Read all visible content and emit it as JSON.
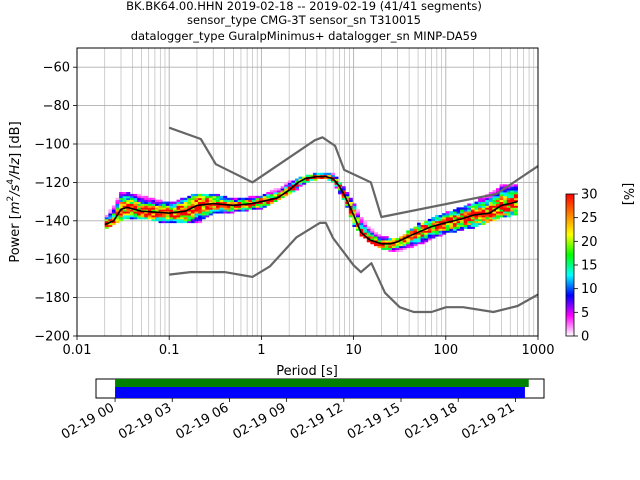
{
  "figure": {
    "title_lines": [
      "BK.BK64.00.HHN   2019-02-18 -- 2019-02-19  (41/41 segments)",
      "sensor_type CMG-3T sensor_sn T310015",
      "datalogger_type GuralpMinimus+ datalogger_sn MINP-DA59"
    ]
  },
  "chart_data": [
    {
      "type": "heatmap",
      "title": "BK.BK64.00.HHN   2019-02-18 -- 2019-02-19  (41/41 segments)",
      "xlabel": "Period [s]",
      "ylabel_parts": [
        "Power [",
        "m",
        "2",
        "/",
        "s",
        "4",
        "/",
        "Hz",
        "] [dB]"
      ],
      "xscale": "log",
      "xlim": [
        0.01,
        1000
      ],
      "ylim": [
        -200,
        -50
      ],
      "xtick_values": [
        0.01,
        0.1,
        1,
        10,
        100,
        1000
      ],
      "xtick_labels": [
        "0.01",
        "0.1",
        "1",
        "10",
        "100",
        "1000"
      ],
      "ytick_values": [
        -200,
        -180,
        -160,
        -140,
        -120,
        -100,
        -80,
        -60
      ],
      "ytick_labels": [
        "−200",
        "−180",
        "−160",
        "−140",
        "−120",
        "−100",
        "−80",
        "−60"
      ],
      "grid": true,
      "colorbar": {
        "label": "[%]",
        "range": [
          0,
          30
        ],
        "tick_values": [
          0,
          5,
          10,
          15,
          20,
          25,
          30
        ],
        "tick_labels": [
          "0",
          "5",
          "10",
          "15",
          "20",
          "25",
          "30"
        ],
        "colormap": [
          "#ffffff",
          "#ff00ff",
          "#0000ff",
          "#00ffff",
          "#00ff00",
          "#ffff00",
          "#ff8000",
          "#ff0000"
        ]
      },
      "series": [
        {
          "role": "noise-model-high",
          "color": "#666666",
          "x": [
            0.1,
            0.22,
            0.32,
            0.8,
            3.8,
            4.6,
            6.3,
            7.9,
            15.4,
            20,
            354,
            1000
          ],
          "y": [
            -91.5,
            -97.4,
            -110.5,
            -120,
            -98,
            -96.5,
            -101,
            -113.5,
            -120,
            -138,
            -126,
            -111.5
          ]
        },
        {
          "role": "noise-model-low",
          "color": "#666666",
          "x": [
            0.1,
            0.17,
            0.4,
            0.8,
            1.24,
            2.4,
            4.3,
            5,
            6,
            10,
            12,
            15.6,
            21.9,
            31.6,
            45,
            70,
            101,
            154,
            328,
            600,
            1000
          ],
          "y": [
            -168,
            -166.7,
            -166.7,
            -169.2,
            -163.7,
            -148.6,
            -141.1,
            -141.1,
            -149,
            -163.2,
            -166.7,
            -162.1,
            -177.5,
            -185,
            -187.5,
            -187.5,
            -185,
            -185,
            -187.5,
            -184.4,
            -178.4
          ]
        },
        {
          "role": "mode",
          "color": "#000000",
          "x": [
            0.02,
            0.025,
            0.03,
            0.035,
            0.05,
            0.1,
            0.15,
            0.2,
            0.3,
            0.5,
            0.8,
            1,
            1.5,
            2,
            2.5,
            3,
            4,
            5,
            6,
            7,
            8,
            10,
            12,
            15,
            20,
            25,
            30,
            40,
            50,
            70,
            100,
            150,
            200,
            300,
            400,
            500,
            600
          ],
          "y": [
            -142,
            -140,
            -134,
            -133,
            -135,
            -136,
            -135,
            -132,
            -131,
            -132,
            -131,
            -130,
            -128,
            -124,
            -120,
            -118,
            -117,
            -117,
            -118,
            -122,
            -127,
            -137,
            -146,
            -150,
            -152,
            -152,
            -151,
            -148,
            -146,
            -143,
            -141,
            -139,
            -137,
            -136,
            -132,
            -131,
            -130
          ]
        },
        {
          "role": "psd-envelope-upper",
          "x": [
            0.02,
            0.03,
            0.05,
            0.1,
            0.2,
            0.3,
            0.5,
            1,
            2,
            3,
            4,
            5,
            6,
            8,
            10,
            15,
            20,
            30,
            50,
            100,
            200,
            400,
            600
          ],
          "y": [
            -139,
            -125,
            -127,
            -131,
            -126,
            -126,
            -129,
            -127,
            -120,
            -117,
            -115,
            -115,
            -116,
            -123,
            -131,
            -143,
            -148,
            -150,
            -142,
            -136,
            -131,
            -122,
            -121
          ]
        },
        {
          "role": "psd-envelope-lower",
          "x": [
            0.02,
            0.03,
            0.05,
            0.1,
            0.2,
            0.3,
            0.5,
            1,
            2,
            3,
            4,
            5,
            6,
            8,
            10,
            15,
            20,
            30,
            50,
            100,
            200,
            400,
            600
          ],
          "y": [
            -144,
            -139,
            -138,
            -141,
            -141,
            -136,
            -135,
            -133,
            -126,
            -120,
            -118,
            -118,
            -120,
            -129,
            -142,
            -151,
            -154,
            -156,
            -152,
            -146,
            -143,
            -138,
            -136
          ]
        }
      ]
    },
    {
      "type": "bar",
      "title": "",
      "xlim_hours": [
        -1,
        22.5
      ],
      "xtick_values": [
        0,
        3,
        6,
        9,
        12,
        15,
        18,
        21
      ],
      "xtick_labels": [
        "02-19 00",
        "02-19 03",
        "02-19 06",
        "02-19 09",
        "02-19 12",
        "02-19 15",
        "02-19 18",
        "02-19 21"
      ],
      "series": [
        {
          "role": "data-available",
          "color": "#008000",
          "start_hours": 0,
          "end_hours": 21.7
        },
        {
          "role": "psd-processed",
          "color": "#0000ff",
          "start_hours": 0,
          "end_hours": 21.5
        }
      ]
    }
  ]
}
